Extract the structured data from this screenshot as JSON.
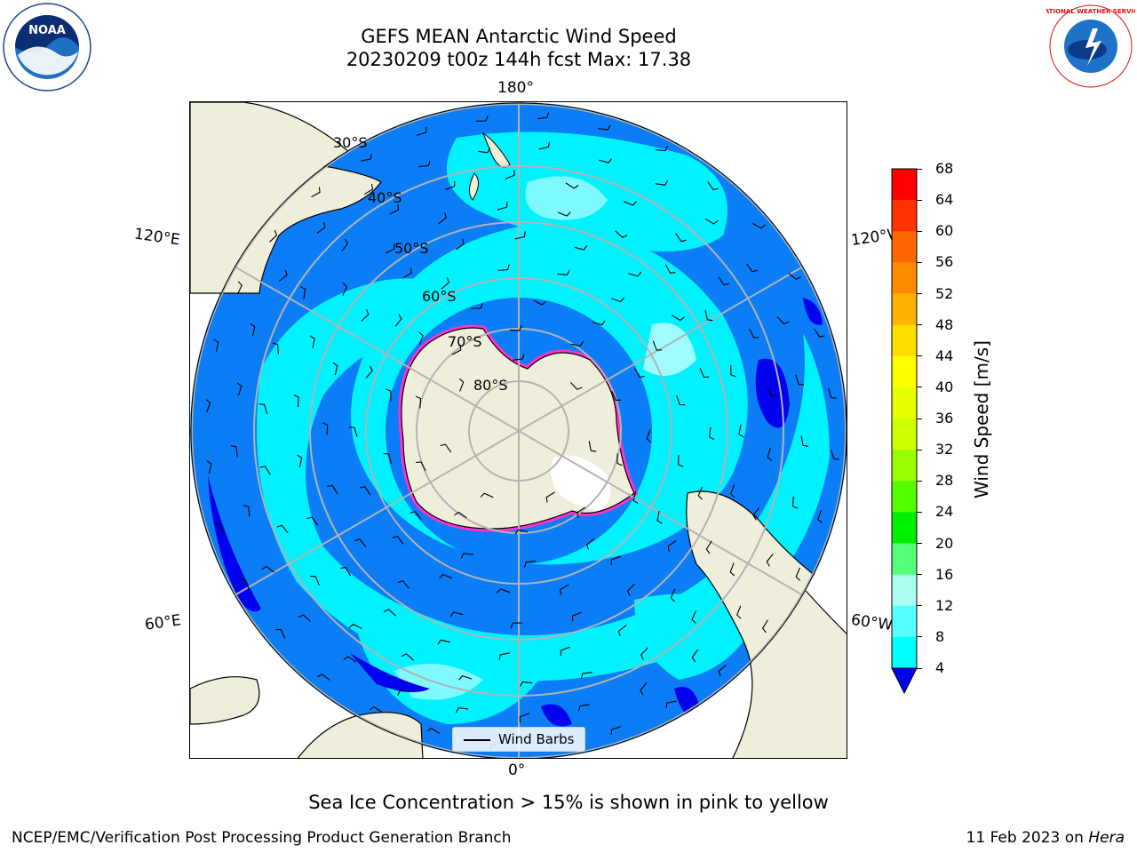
{
  "title": {
    "line1": "GEFS MEAN Antarctic Wind Speed",
    "line2": "20230209 t00z 144h fcst   Max: 17.38"
  },
  "map": {
    "lon_labels": [
      "180°",
      "120°E",
      "120°W",
      "60°E",
      "60°W",
      "0°"
    ],
    "lat_labels": [
      "30°S",
      "40°S",
      "50°S",
      "60°S",
      "70°S",
      "80°S"
    ],
    "legend": "Wind Barbs"
  },
  "colorbar": {
    "title": "Wind Speed [m/s]",
    "ticks": [
      "68",
      "64",
      "60",
      "56",
      "52",
      "48",
      "44",
      "40",
      "36",
      "32",
      "28",
      "24",
      "20",
      "16",
      "12",
      "8",
      "4"
    ],
    "colors": [
      "#ff0000",
      "#ff3300",
      "#ff6600",
      "#ff8c00",
      "#ffb300",
      "#ffdd00",
      "#ffff00",
      "#e6ff00",
      "#ccff00",
      "#99ff00",
      "#55ff00",
      "#00ee00",
      "#55ff77",
      "#aaffee",
      "#55ffff",
      "#00ffff",
      "#0088ff"
    ],
    "under_color": "#0000ee"
  },
  "caption": "Sea Ice Concentration > 15% is shown in pink to yellow",
  "credit_left": "NCEP/EMC/Verification Post Processing Product Generation Branch",
  "credit_right_prefix": "11 Feb 2023 on ",
  "credit_right_machine": "Hera",
  "logos": {
    "noaa": "NOAA",
    "nws": "NATIONAL WEATHER SERVICE"
  }
}
